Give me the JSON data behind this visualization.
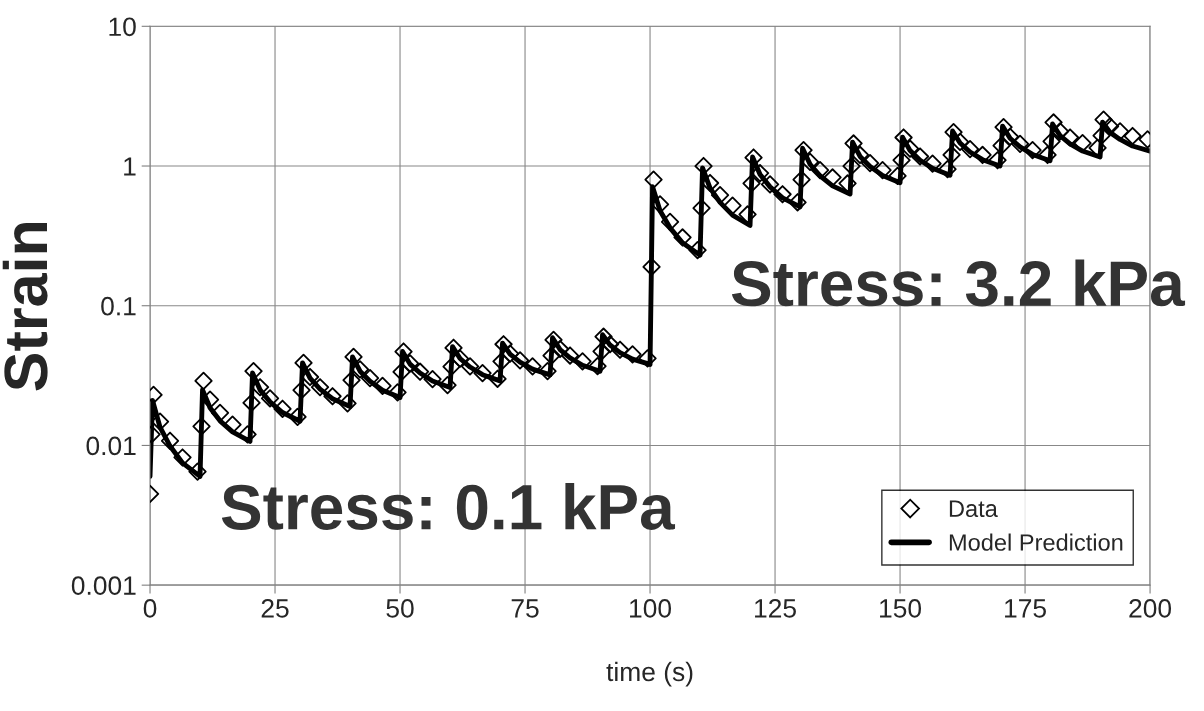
{
  "chart_data": {
    "type": "scatter",
    "xlabel": "time (s)",
    "ylabel": "Strain",
    "log": "y",
    "xlim": [
      0,
      200
    ],
    "xticks": [
      0,
      25,
      50,
      75,
      100,
      125,
      150,
      175,
      200
    ],
    "ylim": [
      0.001,
      10
    ],
    "yticks": [
      0.001,
      0.01,
      0.1,
      1,
      10
    ],
    "grid": true,
    "legend": "bottom right",
    "annotations": [
      "Stress: 0.1 kPa",
      "Stress: 3.2 kPa"
    ],
    "series": [
      {
        "name": "Data",
        "marker": "diamond",
        "color": "#000000",
        "x": [
          0,
          0.3,
          0.7,
          2,
          4,
          6.5,
          9.5,
          10.3,
          10.7,
          12,
          14,
          16.5,
          19.5,
          20.3,
          20.7,
          22,
          24,
          26.5,
          29.5,
          30.3,
          30.7,
          32,
          34,
          36.5,
          39.5,
          40.3,
          40.7,
          42,
          44,
          46.5,
          49.5,
          50.3,
          50.7,
          52,
          54,
          56.5,
          59.5,
          60.3,
          60.7,
          62,
          64,
          66.5,
          69.5,
          70.3,
          70.7,
          72,
          74,
          76.5,
          79.5,
          80.3,
          80.7,
          82,
          84,
          86.5,
          89.5,
          90.3,
          90.7,
          92,
          94,
          96.5,
          99.5,
          100.3,
          100.7,
          102,
          104,
          106.5,
          109.5,
          110.3,
          110.7,
          112,
          114,
          116.5,
          119.5,
          120.3,
          120.7,
          122,
          124,
          126.5,
          129.5,
          130.3,
          130.7,
          132,
          134,
          136.5,
          139.5,
          140.3,
          140.7,
          142,
          144,
          146.5,
          149.5,
          150.3,
          150.7,
          152,
          154,
          156.5,
          159.5,
          160.3,
          160.7,
          162,
          164,
          166.5,
          169.5,
          170.3,
          170.7,
          172,
          174,
          176.5,
          179.5,
          180.3,
          180.7,
          182,
          184,
          186.5,
          189.5,
          190.3,
          190.7,
          192,
          194,
          196.5,
          199.5
        ],
        "values": [
          0.0045,
          0.012,
          0.023,
          0.0148,
          0.0108,
          0.0082,
          0.0065,
          0.0137,
          0.029,
          0.0213,
          0.0171,
          0.0141,
          0.012,
          0.0202,
          0.034,
          0.0261,
          0.0217,
          0.0183,
          0.016,
          0.0249,
          0.039,
          0.0309,
          0.0261,
          0.0225,
          0.02,
          0.0293,
          0.043,
          0.035,
          0.0303,
          0.0267,
          0.024,
          0.0336,
          0.047,
          0.0387,
          0.0337,
          0.0298,
          0.027,
          0.0367,
          0.05,
          0.0418,
          0.0368,
          0.0329,
          0.03,
          0.0399,
          0.053,
          0.0454,
          0.0406,
          0.0368,
          0.034,
          0.0439,
          0.057,
          0.049,
          0.044,
          0.04,
          0.037,
          0.0471,
          0.06,
          0.053,
          0.0484,
          0.0448,
          0.042,
          0.19,
          0.8,
          0.532,
          0.398,
          0.308,
          0.25,
          0.5,
          1.0,
          0.756,
          0.619,
          0.52,
          0.45,
          0.75,
          1.15,
          0.888,
          0.738,
          0.628,
          0.55,
          0.8,
          1.3,
          1.07,
          0.935,
          0.828,
          0.75,
          1.0,
          1.45,
          1.2,
          1.05,
          0.935,
          0.85,
          1.1,
          1.6,
          1.33,
          1.17,
          1.04,
          0.95,
          1.2,
          1.75,
          1.49,
          1.32,
          1.2,
          1.1,
          1.4,
          1.9,
          1.62,
          1.44,
          1.3,
          1.2,
          1.5,
          2.05,
          1.77,
          1.6,
          1.46,
          1.35,
          1.65,
          2.15,
          1.92,
          1.77,
          1.64,
          1.55
        ]
      },
      {
        "name": "Model Prediction",
        "type": "line",
        "marker": "none",
        "line_style": "solid",
        "color": "#000000",
        "x": [
          0,
          0.5,
          2,
          4,
          6.5,
          10,
          10.5,
          12,
          14,
          16.5,
          20,
          20.5,
          22,
          24,
          26.5,
          30,
          30.5,
          32,
          34,
          36.5,
          40,
          40.5,
          42,
          44,
          46.5,
          50,
          50.5,
          52,
          54,
          56.5,
          60,
          60.5,
          62,
          64,
          66.5,
          70,
          70.5,
          72,
          74,
          76.5,
          80,
          80.5,
          82,
          84,
          86.5,
          90,
          90.5,
          92,
          94,
          96.5,
          100,
          100.5,
          102,
          104,
          106.5,
          110,
          110.5,
          112,
          114,
          116.5,
          120,
          120.5,
          122,
          124,
          126.5,
          130,
          130.5,
          132,
          134,
          136.5,
          140,
          140.5,
          142,
          144,
          146.5,
          150,
          150.5,
          152,
          154,
          156.5,
          160,
          160.5,
          162,
          164,
          166.5,
          170,
          170.5,
          172,
          174,
          176.5,
          180,
          180.5,
          182,
          184,
          186.5,
          190,
          190.5,
          192,
          194,
          196.5,
          200
        ],
        "values": [
          0.006,
          0.021,
          0.0135,
          0.0099,
          0.0075,
          0.006,
          0.025,
          0.0186,
          0.015,
          0.0125,
          0.0107,
          0.033,
          0.025,
          0.0205,
          0.0172,
          0.0149,
          0.039,
          0.0303,
          0.0253,
          0.0216,
          0.019,
          0.043,
          0.034,
          0.0288,
          0.0248,
          0.022,
          0.047,
          0.0382,
          0.033,
          0.0289,
          0.026,
          0.051,
          0.0419,
          0.0364,
          0.0321,
          0.029,
          0.054,
          0.045,
          0.0395,
          0.0352,
          0.032,
          0.059,
          0.0486,
          0.0424,
          0.0375,
          0.034,
          0.062,
          0.0523,
          0.0462,
          0.0415,
          0.038,
          0.71,
          0.479,
          0.361,
          0.282,
          0.23,
          0.97,
          0.695,
          0.549,
          0.445,
          0.375,
          1.16,
          0.87,
          0.709,
          0.592,
          0.51,
          1.34,
          1.03,
          0.852,
          0.721,
          0.63,
          1.48,
          1.17,
          0.993,
          0.857,
          0.76,
          1.61,
          1.29,
          1.1,
          0.963,
          0.86,
          1.78,
          1.46,
          1.26,
          1.11,
          1.0,
          1.93,
          1.58,
          1.37,
          1.21,
          1.09,
          2.0,
          1.65,
          1.44,
          1.28,
          1.16,
          2.06,
          1.74,
          1.55,
          1.39,
          1.28
        ]
      }
    ]
  }
}
